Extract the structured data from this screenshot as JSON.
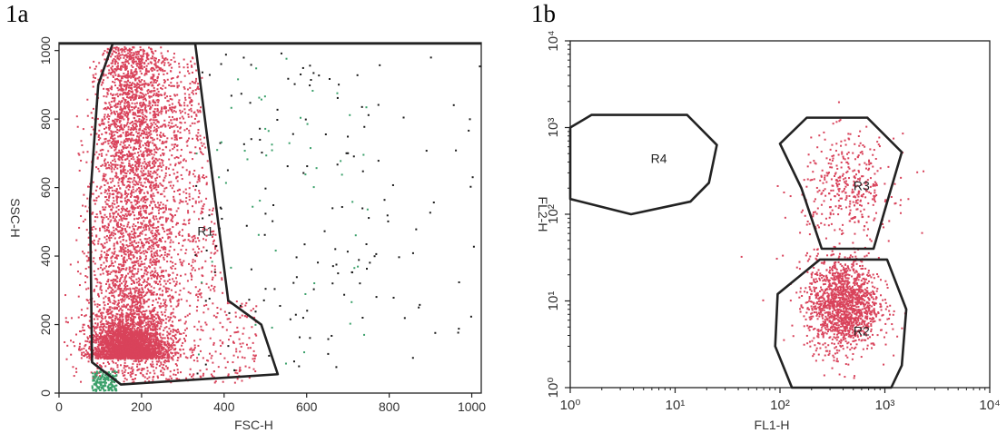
{
  "panels": {
    "a": {
      "label": "1a"
    },
    "b": {
      "label": "1b"
    }
  },
  "chart_data": [
    {
      "type": "scatter",
      "panel": "1a",
      "title": "",
      "xlabel": "FSC-H",
      "ylabel": "SSC-H",
      "xlim": [
        0,
        1023
      ],
      "ylim": [
        0,
        1023
      ],
      "xticks": [
        0,
        200,
        400,
        600,
        800,
        1000
      ],
      "yticks": [
        0,
        200,
        400,
        600,
        800,
        1000
      ],
      "grid": false,
      "colors": {
        "main": "#d9435b",
        "secondary": "#3aa06a",
        "sparse": "#1a1a1a",
        "gate": "#222222"
      },
      "density": {
        "description_free": true,
        "main_population": {
          "x_center": 180,
          "x_spread": 70,
          "y_range": [
            20,
            1000
          ]
        },
        "dense_core": {
          "x": 170,
          "y": 100
        }
      },
      "gates": [
        {
          "name": "R1",
          "label_pos": [
            355,
            460
          ],
          "vertices": [
            [
              130,
              1020
            ],
            [
              330,
              1020
            ],
            [
              410,
              270
            ],
            [
              490,
              200
            ],
            [
              530,
              55
            ],
            [
              150,
              25
            ],
            [
              80,
              90
            ],
            [
              75,
              560
            ],
            [
              95,
              900
            ]
          ]
        }
      ]
    },
    {
      "type": "scatter",
      "panel": "1b",
      "title": "",
      "xlabel": "FL1-H",
      "ylabel": "FL2-H",
      "xscale": "log",
      "yscale": "log",
      "xlim": [
        1,
        10000
      ],
      "ylim": [
        1,
        10000
      ],
      "xticks": [
        1,
        10,
        100,
        1000,
        10000
      ],
      "yticks": [
        1,
        10,
        100,
        1000,
        10000
      ],
      "xtick_labels": [
        "10⁰",
        "10¹",
        "10²",
        "10³",
        "10⁴"
      ],
      "ytick_labels": [
        "10⁰",
        "10¹",
        "10²",
        "10³",
        "10⁴"
      ],
      "grid": false,
      "colors": {
        "main": "#d9435b",
        "gate": "#222222"
      },
      "gates": [
        {
          "name": "R4",
          "label_pos": [
            7,
            390
          ],
          "vertices": [
            [
              1.6,
              1400
            ],
            [
              13,
              1400
            ],
            [
              25,
              630
            ],
            [
              21,
              230
            ],
            [
              14,
              140
            ],
            [
              3.8,
              100
            ],
            [
              1,
              150
            ],
            [
              1,
              1000
            ]
          ]
        },
        {
          "name": "R3",
          "label_pos": [
            600,
            190
          ],
          "vertices": [
            [
              100,
              650
            ],
            [
              180,
              1300
            ],
            [
              680,
              1300
            ],
            [
              1450,
              520
            ],
            [
              1150,
              200
            ],
            [
              780,
              40
            ],
            [
              250,
              40
            ],
            [
              160,
              200
            ]
          ]
        },
        {
          "name": "R2",
          "label_pos": [
            600,
            4
          ],
          "vertices": [
            [
              240,
              30
            ],
            [
              1050,
              30
            ],
            [
              1600,
              8
            ],
            [
              1450,
              1.8
            ],
            [
              1150,
              1
            ],
            [
              130,
              1
            ],
            [
              90,
              3
            ],
            [
              95,
              12
            ]
          ]
        }
      ],
      "populations": [
        {
          "gate": "R2",
          "x_geo_center": 400,
          "y_geo_center": 9
        },
        {
          "gate": "R3",
          "x_geo_center": 450,
          "y_geo_center": 200
        }
      ]
    }
  ]
}
